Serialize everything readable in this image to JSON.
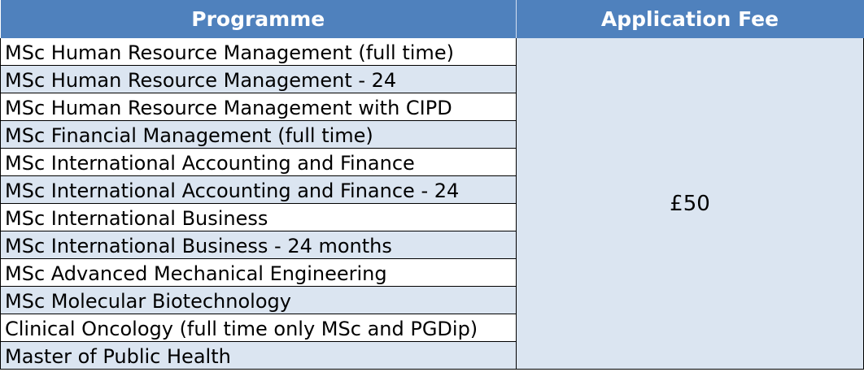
{
  "table": {
    "headers": {
      "programme": "Programme",
      "fee": "Application Fee"
    },
    "fee_value": "£50",
    "programmes": [
      "MSc Human Resource Management (full time)",
      "MSc Human Resource Management - 24",
      "MSc Human Resource Management with CIPD",
      "MSc Financial Management (full time)",
      "MSc International Accounting and Finance",
      "MSc International Accounting and Finance - 24",
      "MSc International Business",
      "MSc International Business - 24 months",
      "MSc Advanced Mechanical Engineering",
      "MSc Molecular Biotechnology",
      "Clinical Oncology (full time only MSc and PGDip)",
      "Master of Public Health"
    ]
  },
  "colors": {
    "header_bg": "#4f81bd",
    "row_alt_bg": "#dbe5f1",
    "header_text": "#ffffff"
  }
}
